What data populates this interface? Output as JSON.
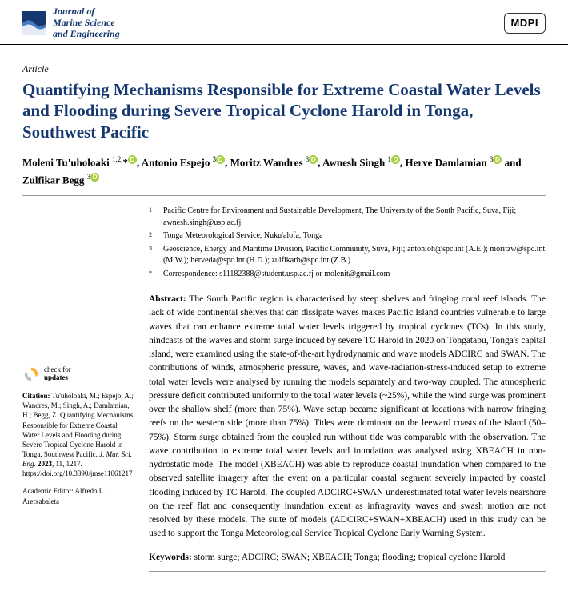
{
  "header": {
    "journal_line1": "Journal of",
    "journal_line2": "Marine Science",
    "journal_line3": "and Engineering",
    "publisher": "MDPI"
  },
  "article_type": "Article",
  "title": "Quantifying Mechanisms Responsible for Extreme Coastal Water Levels and Flooding during Severe Tropical Cyclone Harold in Tonga, Southwest Pacific",
  "authors_html": "Moleni Tu'uholoaki <sup>1,2,</sup>*<span class='orcid'></span>, Antonio Espejo <sup>3</sup><span class='orcid'></span>, Moritz Wandres <sup>3</sup><span class='orcid'></span>, Awnesh Singh <sup>1</sup><span class='orcid'></span>, Herve Damlamian <sup>3</sup><span class='orcid'></span> and Zulfikar Begg <sup>3</sup><span class='orcid'></span>",
  "affiliations": [
    {
      "num": "1",
      "text": "Pacific Centre for Environment and Sustainable Development, The University of the South Pacific, Suva, Fiji; awnesh.singh@usp.ac.fj"
    },
    {
      "num": "2",
      "text": "Tonga Meteorological Service, Nuku'alofa, Tonga"
    },
    {
      "num": "3",
      "text": "Geoscience, Energy and Maritime Division, Pacific Community, Suva, Fiji; antonioh@spc.int (A.E.); moritzw@spc.int (M.W.); herveda@spc.int (H.D.); zulfikarb@spc.int (Z.B.)"
    },
    {
      "num": "*",
      "text": "Correspondence: s11182388@student.usp.ac.fj or molenit@gmail.com"
    }
  ],
  "abstract_label": "Abstract:",
  "abstract": "The South Pacific region is characterised by steep shelves and fringing coral reef islands. The lack of wide continental shelves that can dissipate waves makes Pacific Island countries vulnerable to large waves that can enhance extreme total water levels triggered by tropical cyclones (TCs). In this study, hindcasts of the waves and storm surge induced by severe TC Harold in 2020 on Tongatapu, Tonga's capital island, were examined using the state-of-the-art hydrodynamic and wave models ADCIRC and SWAN. The contributions of winds, atmospheric pressure, waves, and wave-radiation-stress-induced setup to extreme total water levels were analysed by running the models separately and two-way coupled. The atmospheric pressure deficit contributed uniformly to the total water levels (~25%), while the wind surge was prominent over the shallow shelf (more than 75%). Wave setup became significant at locations with narrow fringing reefs on the western side (more than 75%). Tides were dominant on the leeward coasts of the island (50–75%). Storm surge obtained from the coupled run without tide was comparable with the observation. The wave contribution to extreme total water levels and inundation was analysed using XBEACH in non-hydrostatic mode. The model (XBEACH) was able to reproduce coastal inundation when compared to the observed satellite imagery after the event on a particular coastal segment severely impacted by coastal flooding induced by TC Harold. The coupled ADCIRC+SWAN underestimated total water levels nearshore on the reef flat and consequently inundation extent as infragravity waves and swash motion are not resolved by these models. The suite of models (ADCIRC+SWAN+XBEACH) used in this study can be used to support the Tonga Meteorological Service Tropical Cyclone Early Warning System.",
  "keywords_label": "Keywords:",
  "keywords": "storm surge; ADCIRC; SWAN; XBEACH; Tonga; flooding; tropical cyclone Harold",
  "sidebar": {
    "check_line1": "check for",
    "check_line2": "updates",
    "citation_label": "Citation:",
    "citation": "Tu'uholoaki, M.; Espejo, A.; Wandres, M.; Singh, A.; Damlamian, H.; Begg, Z. Quantifying Mechanisms Responsible for Extreme Coastal Water Levels and Flooding during Severe Tropical Cyclone Harold in Tonga, Southwest Pacific. ",
    "citation_journal": "J. Mar. Sci. Eng.",
    "citation_rest": " 2023, 11, 1217. https://doi.org/10.3390/jmse11061217",
    "editor_label": "Academic Editor:",
    "editor": "Alfredo L. Aretxabaleta"
  },
  "colors": {
    "brand": "#153870",
    "orcid": "#a6ce39",
    "check_arrow1": "#f9b233",
    "check_arrow2": "#bcbec0"
  }
}
